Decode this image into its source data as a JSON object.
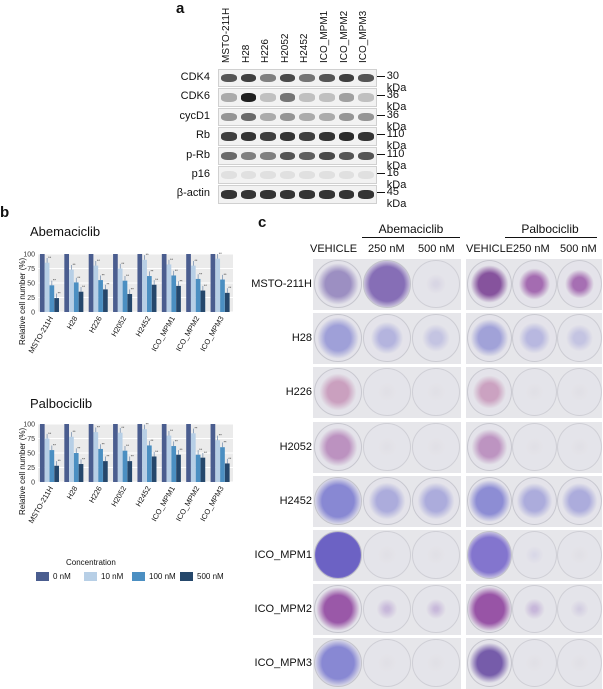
{
  "panel_a": {
    "letter": "a",
    "lanes": [
      "MSTO-211H",
      "H28",
      "H226",
      "H2052",
      "H2452",
      "ICO_MPM1",
      "ICO_MPM2",
      "ICO_MPM3"
    ],
    "rows": [
      {
        "protein": "CDK4",
        "kda": "30 kDa",
        "intensity": [
          0.7,
          0.8,
          0.5,
          0.75,
          0.55,
          0.7,
          0.8,
          0.7
        ]
      },
      {
        "protein": "CDK6",
        "kda": "36 kDa",
        "intensity": [
          0.3,
          0.95,
          0.2,
          0.55,
          0.2,
          0.2,
          0.35,
          0.2
        ]
      },
      {
        "protein": "cycD1",
        "kda": "36 kDa",
        "intensity": [
          0.4,
          0.6,
          0.3,
          0.4,
          0.3,
          0.3,
          0.4,
          0.4
        ]
      },
      {
        "protein": "Rb",
        "kda": "110 kDa",
        "intensity": [
          0.8,
          0.85,
          0.8,
          0.85,
          0.8,
          0.85,
          0.9,
          0.85
        ]
      },
      {
        "protein": "p-Rb",
        "kda": "110 kDa",
        "intensity": [
          0.6,
          0.5,
          0.5,
          0.7,
          0.65,
          0.75,
          0.7,
          0.7
        ]
      },
      {
        "protein": "p16",
        "kda": "16 kDa",
        "intensity": [
          0.05,
          0.05,
          0.05,
          0.05,
          0.05,
          0.05,
          0.05,
          0.05
        ]
      },
      {
        "protein": "β-actin",
        "kda": "45 kDa",
        "intensity": [
          0.85,
          0.85,
          0.85,
          0.85,
          0.85,
          0.85,
          0.85,
          0.85
        ]
      }
    ]
  },
  "panel_b": {
    "letter": "b",
    "legend_title": "Concentration",
    "legend": [
      "0 nM",
      "10 nM",
      "100 nM",
      "500 nM"
    ],
    "colors": [
      "#4a5d8f",
      "#b7cfe6",
      "#4b8fc2",
      "#25476b"
    ]
  },
  "chart_data": [
    {
      "type": "bar",
      "title": "Abemaciclib",
      "ylabel": "Relative cell number (%)",
      "ylim": [
        0,
        100
      ],
      "yticks": [
        0,
        25,
        50,
        75,
        100
      ],
      "categories": [
        "MSTO-211H",
        "H28",
        "H226",
        "H2052",
        "H2452",
        "ICO_MPM1",
        "ICO_MPM2",
        "ICO_MPM3"
      ],
      "series": [
        {
          "name": "0 nM",
          "values": [
            100,
            100,
            100,
            100,
            100,
            100,
            100,
            100
          ]
        },
        {
          "name": "10 nM",
          "values": [
            85,
            73,
            80,
            75,
            90,
            82,
            80,
            92
          ]
        },
        {
          "name": "100 nM",
          "values": [
            46,
            51,
            55,
            54,
            62,
            63,
            57,
            56
          ]
        },
        {
          "name": "500 nM",
          "values": [
            24,
            35,
            39,
            31,
            47,
            45,
            37,
            33
          ]
        }
      ]
    },
    {
      "type": "bar",
      "title": "Palbociclib",
      "ylabel": "Relative cell number (%)",
      "ylim": [
        0,
        100
      ],
      "yticks": [
        0,
        25,
        50,
        75,
        100
      ],
      "categories": [
        "MSTO-211H",
        "H28",
        "H226",
        "H2052",
        "H2452",
        "ICO_MPM1",
        "ICO_MPM2",
        "ICO_MPM3"
      ],
      "series": [
        {
          "name": "0 nM",
          "values": [
            100,
            100,
            100,
            100,
            100,
            100,
            100,
            100
          ]
        },
        {
          "name": "10 nM",
          "values": [
            75,
            78,
            86,
            85,
            91,
            80,
            84,
            72
          ]
        },
        {
          "name": "100 nM",
          "values": [
            55,
            50,
            57,
            54,
            63,
            62,
            47,
            60
          ]
        },
        {
          "name": "500 nM",
          "values": [
            28,
            31,
            36,
            36,
            44,
            47,
            42,
            32
          ]
        }
      ]
    }
  ],
  "panel_c": {
    "letter": "c",
    "drugs": [
      "Abemaciclib",
      "Palbociclib"
    ],
    "col_heads": [
      "VEHICLE",
      "250 nM",
      "500 nM",
      "VEHICLE",
      "250 nM",
      "500 nM"
    ],
    "rows": [
      {
        "label": "MSTO-211H",
        "density": [
          0.55,
          0.75,
          0.08,
          0.5,
          0.35,
          0.3
        ],
        "color": [
          "#8a7ab8",
          "#7a5fb0",
          "#cfcbe0",
          "#6b2a88",
          "#8a3a9a",
          "#8a3a9a"
        ]
      },
      {
        "label": "H28",
        "density": [
          0.55,
          0.35,
          0.25,
          0.5,
          0.35,
          0.25
        ],
        "color": [
          "#8e8fd4",
          "#a0a0da",
          "#b3b3de",
          "#8e8fd4",
          "#a6a6dc",
          "#b3b3de"
        ]
      },
      {
        "label": "H226",
        "density": [
          0.45,
          0.02,
          0.02,
          0.4,
          0.02,
          0.02
        ],
        "color": [
          "#c28ab2",
          "#dedde4",
          "#dedde4",
          "#c28ab2",
          "#dedde4",
          "#dedde4"
        ]
      },
      {
        "label": "H2052",
        "density": [
          0.5,
          0.02,
          0.02,
          0.45,
          0.02,
          0.02
        ],
        "color": [
          "#b07ab4",
          "#dedde4",
          "#dedde4",
          "#b07ab4",
          "#dedde4",
          "#dedde4"
        ]
      },
      {
        "label": "H2452",
        "density": [
          0.7,
          0.45,
          0.45,
          0.6,
          0.45,
          0.45
        ],
        "color": [
          "#7a7ad0",
          "#9a9ad8",
          "#9a9ad8",
          "#7a7ad0",
          "#9a9ad8",
          "#9a9ad8"
        ]
      },
      {
        "label": "ICO_MPM1",
        "density": [
          0.95,
          0.03,
          0.03,
          0.8,
          0.05,
          0.03
        ],
        "color": [
          "#6a5fc4",
          "#dedde4",
          "#dedde4",
          "#7a6acc",
          "#d0cfe6",
          "#dedde4"
        ]
      },
      {
        "label": "ICO_MPM2",
        "density": [
          0.6,
          0.1,
          0.08,
          0.65,
          0.12,
          0.05
        ],
        "color": [
          "#8a3a9a",
          "#b39ad0",
          "#b39ad0",
          "#8a3a9a",
          "#b39ad0",
          "#c6bedc"
        ]
      },
      {
        "label": "ICO_MPM3",
        "density": [
          0.7,
          0.04,
          0.03,
          0.55,
          0.04,
          0.03
        ],
        "color": [
          "#7a7ad0",
          "#dedde4",
          "#dedde4",
          "#5a3a9a",
          "#dedde4",
          "#dedde4"
        ]
      }
    ]
  }
}
